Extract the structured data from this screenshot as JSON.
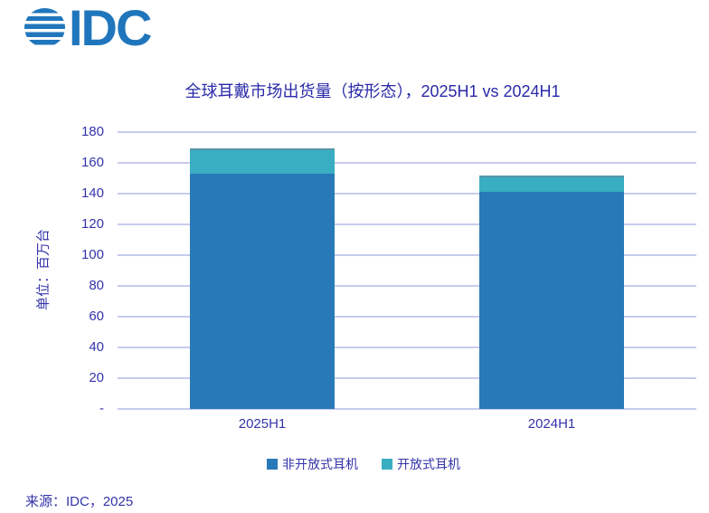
{
  "logo": {
    "text": "IDC"
  },
  "source": "来源：IDC，2025",
  "colors": {
    "logo_blue": "#2076bc",
    "bar_blue": "#2879b8",
    "bar_teal": "#39adc2",
    "gridline": "#c7cbeb",
    "text_navy": "#3434aa",
    "title_navy": "#2a2aa8"
  },
  "chart_data": {
    "type": "bar",
    "stacked": true,
    "title": "全球耳戴市场出货量（按形态），2025H1 vs 2024H1",
    "ylabel": "单位：百万台",
    "xlabel": "",
    "categories": [
      "2025H1",
      "2024H1"
    ],
    "series": [
      {
        "name": "非开放式耳机",
        "color": "#2879b8",
        "values": [
          152.8,
          141.2
        ]
      },
      {
        "name": "开放式耳机",
        "color": "#39adc2",
        "values": [
          16.6,
          10.6
        ]
      }
    ],
    "totals": [
      169.4,
      151.8
    ],
    "ylim": [
      0,
      180
    ],
    "ytick_step": 20,
    "yticks_labels": [
      "180",
      "160",
      "140",
      "120",
      "100",
      "80",
      "60",
      "40",
      "20",
      "-"
    ],
    "grid": true,
    "legend_position": "bottom"
  }
}
